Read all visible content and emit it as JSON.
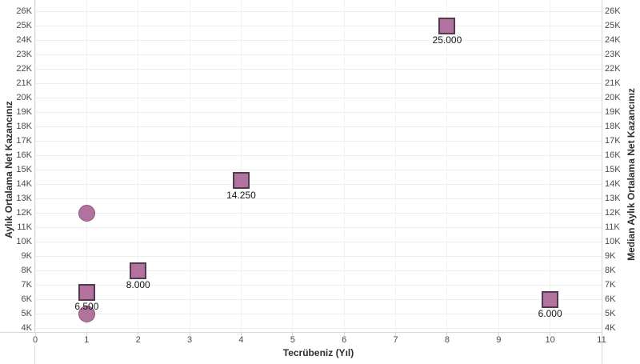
{
  "colors": {
    "mark_fill": "#b1739e",
    "square_border": "#53394f",
    "circle_border": "#8f5680",
    "grid": "#eeeeee",
    "axis_line": "#d8d8d8",
    "tick_text": "#4a4a4a",
    "title_text": "#2e2e2e",
    "data_label_text": "#171717"
  },
  "chart_data": {
    "type": "scatter",
    "title": "",
    "xlabel": "Tecrübeniz (Yıl)",
    "ylabel_left": "Aylık Ortalama Net Kazancınız",
    "ylabel_right": "Median Aylık Ortalama Net Kazancınız",
    "xlim": [
      0,
      11
    ],
    "ylim": [
      4000,
      26000
    ],
    "grid": true,
    "legend_position": "none",
    "x_ticks": [
      0,
      1,
      2,
      3,
      4,
      5,
      6,
      7,
      8,
      9,
      10,
      11
    ],
    "y_ticks": [
      {
        "value": 4000,
        "label": "4K"
      },
      {
        "value": 5000,
        "label": "5K"
      },
      {
        "value": 6000,
        "label": "6K"
      },
      {
        "value": 7000,
        "label": "7K"
      },
      {
        "value": 8000,
        "label": "8K"
      },
      {
        "value": 9000,
        "label": "9K"
      },
      {
        "value": 10000,
        "label": "10K"
      },
      {
        "value": 11000,
        "label": "11K"
      },
      {
        "value": 12000,
        "label": "12K"
      },
      {
        "value": 13000,
        "label": "13K"
      },
      {
        "value": 14000,
        "label": "14K"
      },
      {
        "value": 15000,
        "label": "15K"
      },
      {
        "value": 16000,
        "label": "16K"
      },
      {
        "value": 17000,
        "label": "17K"
      },
      {
        "value": 18000,
        "label": "18K"
      },
      {
        "value": 19000,
        "label": "19K"
      },
      {
        "value": 20000,
        "label": "20K"
      },
      {
        "value": 21000,
        "label": "21K"
      },
      {
        "value": 22000,
        "label": "22K"
      },
      {
        "value": 23000,
        "label": "23K"
      },
      {
        "value": 24000,
        "label": "24K"
      },
      {
        "value": 25000,
        "label": "25K"
      },
      {
        "value": 26000,
        "label": "26K"
      }
    ],
    "series": [
      {
        "name": "Aylık Ortalama Net Kazancınız",
        "marker": "circle",
        "fill": "#b1739e",
        "border": "#8f5680",
        "points": [
          {
            "x": 1,
            "y": 12000
          },
          {
            "x": 1,
            "y": 5000
          }
        ]
      },
      {
        "name": "Median Aylık Ortalama Net Kazancınız",
        "marker": "square",
        "fill": "#b1739e",
        "border": "#53394f",
        "points": [
          {
            "x": 1,
            "y": 6500,
            "label": "6.500"
          },
          {
            "x": 2,
            "y": 8000,
            "label": "8.000"
          },
          {
            "x": 4,
            "y": 14250,
            "label": "14.250"
          },
          {
            "x": 8,
            "y": 25000,
            "label": "25.000"
          },
          {
            "x": 10,
            "y": 6000,
            "label": "6.000"
          }
        ]
      }
    ]
  }
}
